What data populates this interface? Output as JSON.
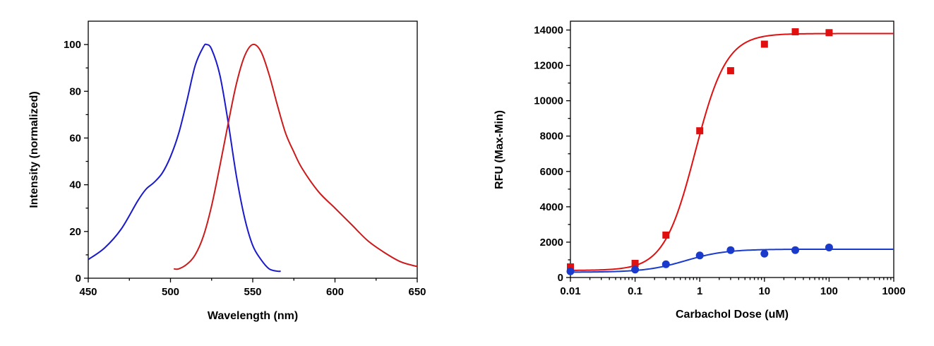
{
  "chart_data": [
    {
      "type": "line",
      "title": "",
      "xlabel": "Wavelength (nm)",
      "ylabel": "Intensity (normalized)",
      "xlim": [
        450,
        650
      ],
      "ylim": [
        0,
        110
      ],
      "xticks": [
        "450",
        "500",
        "550",
        "600",
        "650"
      ],
      "yticks": [
        "0",
        "20",
        "40",
        "60",
        "80",
        "100"
      ],
      "grid": false,
      "legend": "none",
      "series": [
        {
          "color": "#1a1acc",
          "x": [
            450,
            460,
            470,
            480,
            485,
            490,
            495,
            500,
            505,
            510,
            515,
            520,
            522,
            525,
            530,
            535,
            540,
            545,
            550,
            555,
            560,
            565,
            567
          ],
          "y": [
            8,
            13,
            21,
            33,
            38,
            41,
            45,
            52,
            62,
            76,
            91,
            99,
            100,
            98,
            87,
            67,
            44,
            26,
            14,
            8,
            4,
            3,
            3
          ]
        },
        {
          "color": "#cc1a1a",
          "x": [
            502,
            505,
            510,
            515,
            520,
            525,
            530,
            535,
            540,
            545,
            550,
            555,
            560,
            565,
            570,
            575,
            580,
            590,
            600,
            610,
            620,
            630,
            640,
            650
          ],
          "y": [
            4,
            4,
            6,
            10,
            18,
            31,
            48,
            66,
            83,
            95,
            100,
            97,
            87,
            74,
            62,
            54,
            47,
            37,
            30,
            23,
            16,
            11,
            7,
            5
          ]
        }
      ]
    },
    {
      "type": "scatter",
      "title": "",
      "xlabel": "Carbachol Dose (uM)",
      "ylabel": "RFU (Max-Min)",
      "xscale": "log",
      "xlim": [
        0.01,
        1000
      ],
      "ylim": [
        0,
        14500
      ],
      "xticks": [
        "0.01",
        "0.1",
        "1",
        "10",
        "100",
        "1000"
      ],
      "yticks": [
        "0",
        "2000",
        "4000",
        "6000",
        "8000",
        "10000",
        "12000",
        "14000"
      ],
      "grid": false,
      "legend": "none",
      "series": [
        {
          "color": "#e01010",
          "marker": "square",
          "x": [
            0.01,
            0.1,
            0.3,
            1,
            3,
            10,
            30,
            100
          ],
          "y": [
            600,
            800,
            2400,
            8300,
            11700,
            13200,
            13900,
            13850
          ],
          "fit": {
            "bottom": 400,
            "top": 13800,
            "ec50": 0.85,
            "hill": 1.8
          }
        },
        {
          "color": "#1a3acc",
          "marker": "circle",
          "x": [
            0.01,
            0.1,
            0.3,
            1,
            3,
            10,
            30,
            100
          ],
          "y": [
            350,
            450,
            750,
            1250,
            1550,
            1350,
            1550,
            1700
          ],
          "fit": {
            "bottom": 300,
            "top": 1600,
            "ec50": 0.6,
            "hill": 1.4
          }
        }
      ]
    }
  ]
}
